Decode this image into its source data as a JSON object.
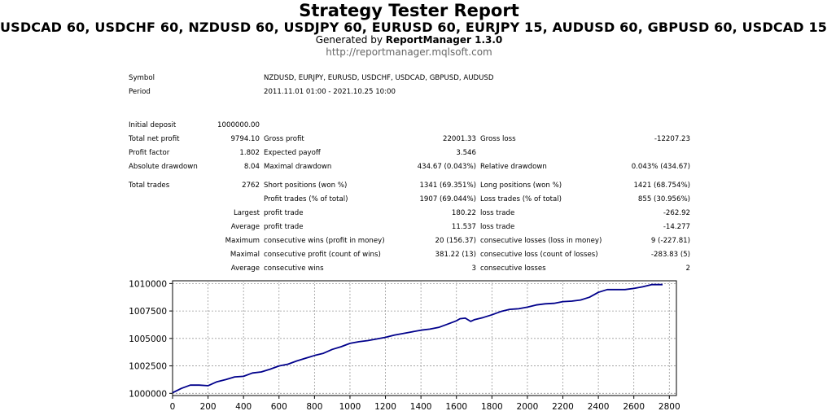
{
  "header": {
    "title": "Strategy Tester Report",
    "subtitle": "USDCAD 60, USDCHF 60, NZDUSD 60, USDJPY 60, EURUSD 60, EURJPY 15, AUDUSD 60, GBPUSD 60, USDCAD 15",
    "generated_prefix": "Generated by ",
    "generated_by": "ReportManager 1.3.0",
    "url": "http://reportmanager.mqlsoft.com"
  },
  "info": {
    "symbol_label": "Symbol",
    "symbol_value": "NZDUSD, EURJPY, EURUSD, USDCHF, USDCAD, GBPUSD, AUDUSD",
    "period_label": "Period",
    "period_value": "2011.11.01 01:00 - 2021.10.25 10:00"
  },
  "stats": {
    "initial_deposit_label": "Initial deposit",
    "initial_deposit": "1000000.00",
    "total_net_profit_label": "Total net profit",
    "total_net_profit": "9794.10",
    "gross_profit_label": "Gross profit",
    "gross_profit": "22001.33",
    "gross_loss_label": "Gross loss",
    "gross_loss": "-12207.23",
    "profit_factor_label": "Profit factor",
    "profit_factor": "1.802",
    "expected_payoff_label": "Expected payoff",
    "expected_payoff": "3.546",
    "absolute_drawdown_label": "Absolute drawdown",
    "absolute_drawdown": "8.04",
    "maximal_drawdown_label": "Maximal drawdown",
    "maximal_drawdown": "434.67 (0.043%)",
    "relative_drawdown_label": "Relative drawdown",
    "relative_drawdown": "0.043% (434.67)",
    "total_trades_label": "Total trades",
    "total_trades": "2762",
    "short_positions_label": "Short positions (won %)",
    "short_positions": "1341 (69.351%)",
    "long_positions_label": "Long positions (won %)",
    "long_positions": "1421 (68.754%)",
    "profit_trades_label": "Profit trades (% of total)",
    "profit_trades": "1907 (69.044%)",
    "loss_trades_label": "Loss trades (% of total)",
    "loss_trades": "855 (30.956%)",
    "largest_label": "Largest",
    "largest_profit_label": "profit trade",
    "largest_profit": "180.22",
    "largest_loss_label": "loss trade",
    "largest_loss": "-262.92",
    "average_label": "Average",
    "average_profit_label": "profit trade",
    "average_profit": "11.537",
    "average_loss_label": "loss trade",
    "average_loss": "-14.277",
    "maximum_label": "Maximum",
    "max_consec_wins_label": "consecutive wins (profit in money)",
    "max_consec_wins": "20 (156.37)",
    "max_consec_losses_label": "consecutive losses (loss in money)",
    "max_consec_losses": "9 (-227.81)",
    "maximal_label": "Maximal",
    "maximal_consec_profit_label": "consecutive profit (count of wins)",
    "maximal_consec_profit": "381.22 (13)",
    "maximal_consec_loss_label": "consecutive loss (count of losses)",
    "maximal_consec_loss": "-283.83 (5)",
    "average2_label": "Average",
    "avg_consec_wins_label": "consecutive wins",
    "avg_consec_wins": "3",
    "avg_consec_losses_label": "consecutive losses",
    "avg_consec_losses": "2"
  },
  "chart_data": {
    "type": "line",
    "title": "",
    "xlabel": "",
    "ylabel": "",
    "xlim": [
      0,
      2840
    ],
    "ylim": [
      999800,
      1010250
    ],
    "x_ticks": [
      0,
      200,
      400,
      600,
      800,
      1000,
      1200,
      1400,
      1600,
      1800,
      2000,
      2200,
      2400,
      2600,
      2800
    ],
    "y_ticks": [
      1000000,
      1002500,
      1005000,
      1007500,
      1010000
    ],
    "grid": true,
    "line_color": "#00008b",
    "series": [
      {
        "x": [
          0,
          50,
          100,
          150,
          200,
          250,
          300,
          350,
          400,
          450,
          500,
          550,
          600,
          650,
          700,
          750,
          800,
          850,
          900,
          950,
          1000,
          1050,
          1100,
          1150,
          1200,
          1250,
          1300,
          1350,
          1400,
          1450,
          1500,
          1550,
          1600,
          1620,
          1650,
          1680,
          1700,
          1750,
          1800,
          1850,
          1900,
          1950,
          2000,
          2050,
          2100,
          2150,
          2200,
          2250,
          2300,
          2350,
          2400,
          2450,
          2500,
          2550,
          2600,
          2650,
          2700,
          2762
        ],
        "y": [
          1000050,
          1000450,
          1000750,
          1000750,
          1000700,
          1001050,
          1001250,
          1001500,
          1001550,
          1001850,
          1001950,
          1002200,
          1002500,
          1002650,
          1002950,
          1003200,
          1003450,
          1003650,
          1004000,
          1004250,
          1004550,
          1004700,
          1004800,
          1004950,
          1005100,
          1005300,
          1005450,
          1005600,
          1005750,
          1005850,
          1006000,
          1006300,
          1006600,
          1006800,
          1006850,
          1006550,
          1006700,
          1006900,
          1007150,
          1007450,
          1007650,
          1007700,
          1007850,
          1008050,
          1008150,
          1008200,
          1008350,
          1008400,
          1008500,
          1008750,
          1009200,
          1009450,
          1009450,
          1009450,
          1009550,
          1009700,
          1009900,
          1009900
        ]
      }
    ]
  }
}
